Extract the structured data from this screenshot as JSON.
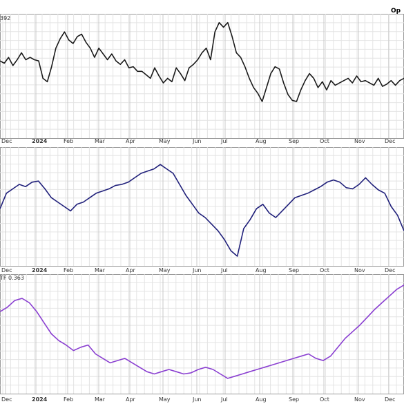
{
  "header": {
    "corner_label": "Op"
  },
  "chart_data": [
    {
      "type": "line",
      "indicator_label": "392",
      "color": "#1a1a1a",
      "ylim": [
        0,
        100
      ],
      "x_ticks": [
        "Dec",
        "2024",
        "Feb",
        "Mar",
        "Apr",
        "May",
        "Jun",
        "Jul",
        "Aug",
        "Sep",
        "Oct",
        "Nov",
        "Dec"
      ],
      "series": [
        {
          "values": [
            63,
            61,
            66,
            59,
            64,
            70,
            64,
            66,
            64,
            63,
            48,
            45,
            58,
            74,
            82,
            88,
            81,
            78,
            84,
            86,
            79,
            74,
            66,
            74,
            69,
            64,
            69,
            63,
            60,
            64,
            57,
            58,
            54,
            54,
            51,
            48,
            57,
            50,
            44,
            48,
            45,
            57,
            52,
            46,
            57,
            60,
            64,
            70,
            74,
            64,
            88,
            96,
            92,
            96,
            84,
            70,
            66,
            58,
            48,
            40,
            35,
            28,
            40,
            52,
            58,
            56,
            44,
            34,
            29,
            28,
            38,
            46,
            52,
            48,
            40,
            45,
            38,
            46,
            42,
            44,
            46,
            48,
            44,
            50,
            45,
            46,
            44,
            42,
            48,
            41,
            43,
            46,
            42,
            46,
            48
          ]
        }
      ]
    },
    {
      "type": "line",
      "indicator_label": "",
      "color": "#1f1f7a",
      "ylim": [
        0,
        100
      ],
      "x_ticks": [
        "Dec",
        "2024",
        "Feb",
        "Mar",
        "Apr",
        "May",
        "Jun",
        "Jul",
        "Aug",
        "Sep",
        "Oct",
        "Nov",
        "Dec"
      ],
      "series": [
        {
          "values": [
            48,
            62,
            66,
            70,
            68,
            72,
            73,
            66,
            58,
            54,
            50,
            46,
            52,
            54,
            58,
            62,
            64,
            66,
            69,
            70,
            72,
            76,
            80,
            82,
            84,
            88,
            84,
            80,
            70,
            60,
            52,
            44,
            40,
            34,
            28,
            20,
            10,
            5,
            30,
            38,
            48,
            52,
            44,
            40,
            46,
            52,
            58,
            60,
            62,
            65,
            68,
            72,
            74,
            72,
            67,
            66,
            70,
            76,
            70,
            65,
            62,
            50,
            42,
            28
          ]
        }
      ]
    },
    {
      "type": "line",
      "indicator_label": "TF 0.363",
      "color": "#8a3fd1",
      "ylim": [
        0,
        100
      ],
      "x_ticks": [
        "Dec",
        "2024",
        "Feb",
        "Mar",
        "Apr",
        "May",
        "Jun",
        "Jul",
        "Aug",
        "Sep",
        "Oct",
        "Nov",
        "Dec"
      ],
      "series": [
        {
          "values": [
            70,
            74,
            80,
            82,
            78,
            70,
            60,
            50,
            44,
            40,
            35,
            38,
            40,
            32,
            28,
            24,
            26,
            28,
            24,
            20,
            16,
            14,
            16,
            18,
            16,
            14,
            15,
            18,
            20,
            18,
            14,
            10,
            12,
            14,
            16,
            18,
            20,
            22,
            24,
            26,
            28,
            30,
            32,
            28,
            26,
            30,
            38,
            46,
            52,
            58,
            65,
            72,
            78,
            84,
            90,
            94
          ]
        }
      ]
    }
  ]
}
